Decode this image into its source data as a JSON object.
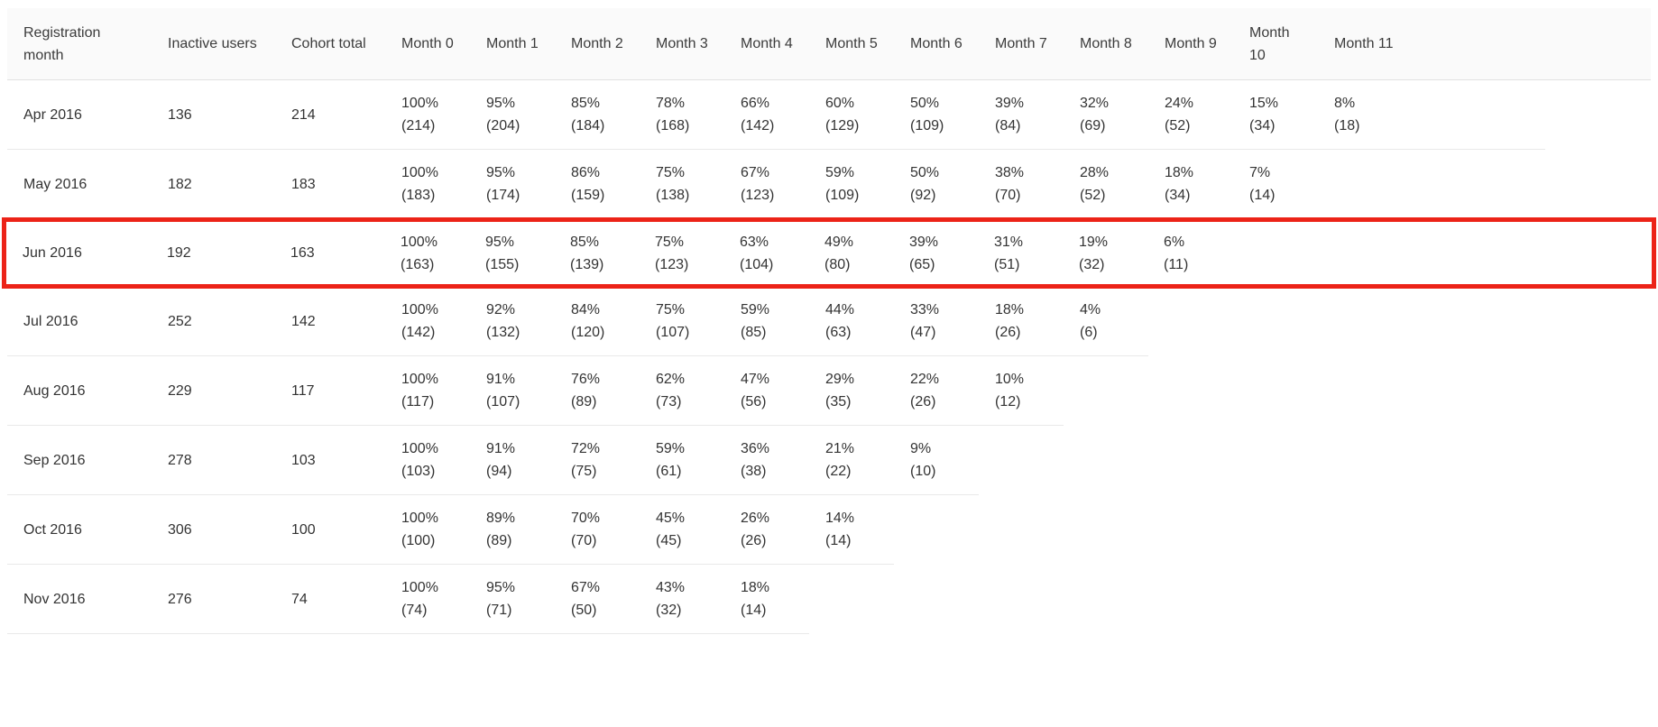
{
  "table": {
    "headers": [
      "Registration month",
      "Inactive users",
      "Cohort total",
      "Month 0",
      "Month 1",
      "Month 2",
      "Month 3",
      "Month 4",
      "Month 5",
      "Month 6",
      "Month 7",
      "Month 8",
      "Month 9",
      "Month 10",
      "Month 11"
    ],
    "rows": [
      {
        "registration_month": "Apr 2016",
        "inactive_users": "136",
        "cohort_total": "214",
        "highlighted": false,
        "months": [
          {
            "pct": "100%",
            "count": "(214)"
          },
          {
            "pct": "95%",
            "count": "(204)"
          },
          {
            "pct": "85%",
            "count": "(184)"
          },
          {
            "pct": "78%",
            "count": "(168)"
          },
          {
            "pct": "66%",
            "count": "(142)"
          },
          {
            "pct": "60%",
            "count": "(129)"
          },
          {
            "pct": "50%",
            "count": "(109)"
          },
          {
            "pct": "39%",
            "count": "(84)"
          },
          {
            "pct": "32%",
            "count": "(69)"
          },
          {
            "pct": "24%",
            "count": "(52)"
          },
          {
            "pct": "15%",
            "count": "(34)"
          },
          {
            "pct": "8%",
            "count": "(18)"
          }
        ]
      },
      {
        "registration_month": "May 2016",
        "inactive_users": "182",
        "cohort_total": "183",
        "highlighted": false,
        "months": [
          {
            "pct": "100%",
            "count": "(183)"
          },
          {
            "pct": "95%",
            "count": "(174)"
          },
          {
            "pct": "86%",
            "count": "(159)"
          },
          {
            "pct": "75%",
            "count": "(138)"
          },
          {
            "pct": "67%",
            "count": "(123)"
          },
          {
            "pct": "59%",
            "count": "(109)"
          },
          {
            "pct": "50%",
            "count": "(92)"
          },
          {
            "pct": "38%",
            "count": "(70)"
          },
          {
            "pct": "28%",
            "count": "(52)"
          },
          {
            "pct": "18%",
            "count": "(34)"
          },
          {
            "pct": "7%",
            "count": "(14)"
          }
        ]
      },
      {
        "registration_month": "Jun 2016",
        "inactive_users": "192",
        "cohort_total": "163",
        "highlighted": true,
        "months": [
          {
            "pct": "100%",
            "count": "(163)"
          },
          {
            "pct": "95%",
            "count": "(155)"
          },
          {
            "pct": "85%",
            "count": "(139)"
          },
          {
            "pct": "75%",
            "count": "(123)"
          },
          {
            "pct": "63%",
            "count": "(104)"
          },
          {
            "pct": "49%",
            "count": "(80)"
          },
          {
            "pct": "39%",
            "count": "(65)"
          },
          {
            "pct": "31%",
            "count": "(51)"
          },
          {
            "pct": "19%",
            "count": "(32)"
          },
          {
            "pct": "6%",
            "count": "(11)"
          }
        ]
      },
      {
        "registration_month": "Jul 2016",
        "inactive_users": "252",
        "cohort_total": "142",
        "highlighted": false,
        "months": [
          {
            "pct": "100%",
            "count": "(142)"
          },
          {
            "pct": "92%",
            "count": "(132)"
          },
          {
            "pct": "84%",
            "count": "(120)"
          },
          {
            "pct": "75%",
            "count": "(107)"
          },
          {
            "pct": "59%",
            "count": "(85)"
          },
          {
            "pct": "44%",
            "count": "(63)"
          },
          {
            "pct": "33%",
            "count": "(47)"
          },
          {
            "pct": "18%",
            "count": "(26)"
          },
          {
            "pct": "4%",
            "count": "(6)"
          }
        ]
      },
      {
        "registration_month": "Aug 2016",
        "inactive_users": "229",
        "cohort_total": "117",
        "highlighted": false,
        "months": [
          {
            "pct": "100%",
            "count": "(117)"
          },
          {
            "pct": "91%",
            "count": "(107)"
          },
          {
            "pct": "76%",
            "count": "(89)"
          },
          {
            "pct": "62%",
            "count": "(73)"
          },
          {
            "pct": "47%",
            "count": "(56)"
          },
          {
            "pct": "29%",
            "count": "(35)"
          },
          {
            "pct": "22%",
            "count": "(26)"
          },
          {
            "pct": "10%",
            "count": "(12)"
          }
        ]
      },
      {
        "registration_month": "Sep 2016",
        "inactive_users": "278",
        "cohort_total": "103",
        "highlighted": false,
        "months": [
          {
            "pct": "100%",
            "count": "(103)"
          },
          {
            "pct": "91%",
            "count": "(94)"
          },
          {
            "pct": "72%",
            "count": "(75)"
          },
          {
            "pct": "59%",
            "count": "(61)"
          },
          {
            "pct": "36%",
            "count": "(38)"
          },
          {
            "pct": "21%",
            "count": "(22)"
          },
          {
            "pct": "9%",
            "count": "(10)"
          }
        ]
      },
      {
        "registration_month": "Oct 2016",
        "inactive_users": "306",
        "cohort_total": "100",
        "highlighted": false,
        "months": [
          {
            "pct": "100%",
            "count": "(100)"
          },
          {
            "pct": "89%",
            "count": "(89)"
          },
          {
            "pct": "70%",
            "count": "(70)"
          },
          {
            "pct": "45%",
            "count": "(45)"
          },
          {
            "pct": "26%",
            "count": "(26)"
          },
          {
            "pct": "14%",
            "count": "(14)"
          }
        ]
      },
      {
        "registration_month": "Nov 2016",
        "inactive_users": "276",
        "cohort_total": "74",
        "highlighted": false,
        "months": [
          {
            "pct": "100%",
            "count": "(74)"
          },
          {
            "pct": "95%",
            "count": "(71)"
          },
          {
            "pct": "67%",
            "count": "(50)"
          },
          {
            "pct": "43%",
            "count": "(32)"
          },
          {
            "pct": "18%",
            "count": "(14)"
          }
        ]
      }
    ],
    "month_column_count": 12
  },
  "colors": {
    "header_bg": "#fafafa",
    "header_border": "#e1e1e1",
    "row_border": "#e9e9e9",
    "text": "#333333",
    "highlight_border": "#ec2318"
  }
}
